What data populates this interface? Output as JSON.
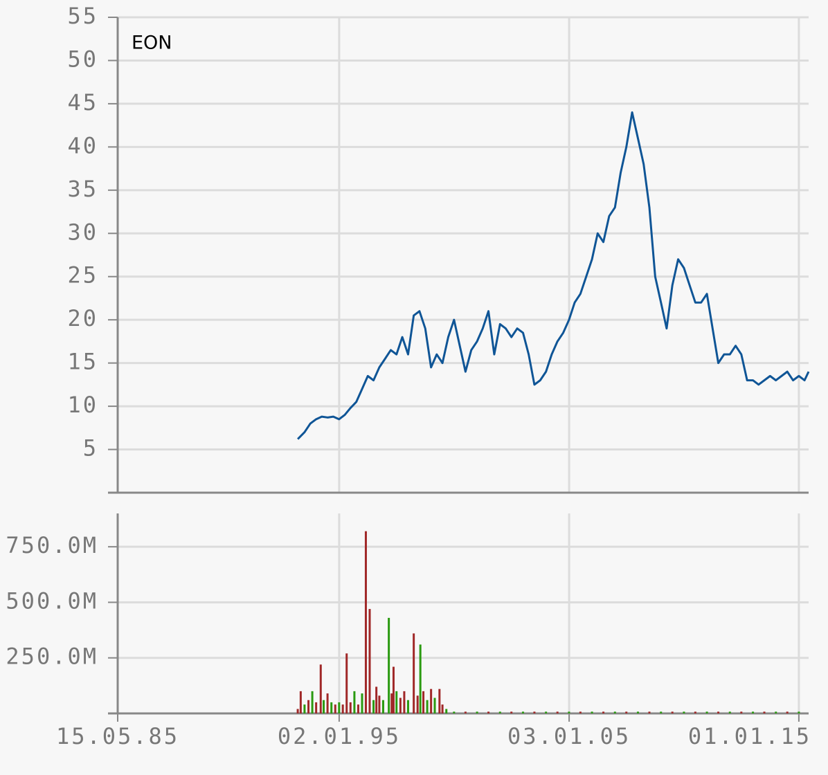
{
  "chart_data": [
    {
      "type": "line",
      "title": "EON",
      "x": [
        "1993-03-15",
        "1993-07-01",
        "1993-10-01",
        "1994-01-01",
        "1994-04-01",
        "1994-07-01",
        "1994-10-01",
        "1995-01-01",
        "1995-04-01",
        "1995-07-01",
        "1995-10-01",
        "1996-01-01",
        "1996-04-01",
        "1996-07-01",
        "1996-10-01",
        "1997-01-01",
        "1997-04-01",
        "1997-07-01",
        "1997-10-01",
        "1998-01-01",
        "1998-04-01",
        "1998-07-01",
        "1998-10-01",
        "1999-01-01",
        "1999-04-01",
        "1999-07-01",
        "1999-10-01",
        "2000-01-01",
        "2000-04-01",
        "2000-07-01",
        "2000-10-01",
        "2001-01-01",
        "2001-04-01",
        "2001-07-01",
        "2001-10-01",
        "2002-01-01",
        "2002-04-01",
        "2002-07-01",
        "2002-10-01",
        "2003-01-01",
        "2003-04-01",
        "2003-07-01",
        "2003-10-01",
        "2004-01-01",
        "2004-04-01",
        "2004-07-01",
        "2004-10-01",
        "2005-01-01",
        "2005-04-01",
        "2005-07-01",
        "2005-10-01",
        "2006-01-01",
        "2006-04-01",
        "2006-07-01",
        "2006-10-01",
        "2007-01-01",
        "2007-04-01",
        "2007-07-01",
        "2007-10-01",
        "2008-01-01",
        "2008-04-01",
        "2008-07-01",
        "2008-10-01",
        "2009-01-01",
        "2009-04-01",
        "2009-07-01",
        "2009-10-01",
        "2010-01-01",
        "2010-04-01",
        "2010-07-01",
        "2010-10-01",
        "2011-01-01",
        "2011-04-01",
        "2011-07-01",
        "2011-10-01",
        "2012-01-01",
        "2012-04-01",
        "2012-07-01",
        "2012-10-01",
        "2013-01-01",
        "2013-04-01",
        "2013-07-01",
        "2013-10-01",
        "2014-01-01",
        "2014-04-01",
        "2014-07-01",
        "2014-10-01",
        "2015-01-01",
        "2015-04-01",
        "2015-06-05"
      ],
      "series": [
        {
          "color": "#0f5596",
          "values": [
            6.2,
            7,
            8,
            8.5,
            8.8,
            8.7,
            8.8,
            8.5,
            9,
            9.8,
            10.5,
            12,
            13.5,
            13,
            14.5,
            15.5,
            16.5,
            16,
            18,
            16,
            20.5,
            21,
            19,
            14.5,
            16,
            15,
            18,
            20,
            17,
            14,
            16.5,
            17.5,
            19,
            21,
            16,
            19.5,
            19,
            18,
            19,
            18.5,
            16,
            12.5,
            13,
            14,
            16,
            17.5,
            18.5,
            20,
            22,
            23,
            25,
            27,
            30,
            29,
            32,
            33,
            37,
            40,
            44,
            41,
            38,
            33,
            25,
            22,
            19,
            24,
            27,
            26,
            24,
            22,
            22,
            23,
            19,
            15,
            16,
            16,
            17,
            16,
            13,
            13,
            12.5,
            13,
            13.5,
            13,
            13.5,
            14,
            13,
            13.5,
            13,
            14
          ]
        }
      ],
      "xlim": [
        "1985-05-15",
        "2015-06-05"
      ],
      "ylim": [
        0,
        55
      ],
      "yticks": [
        5,
        10,
        15,
        20,
        25,
        30,
        35,
        40,
        45,
        50,
        55
      ],
      "grid": true
    },
    {
      "type": "bar",
      "x": [
        "1993-03-15",
        "1993-05-01",
        "1993-07-01",
        "1993-09-01",
        "1993-11-01",
        "1994-01-01",
        "1994-03-15",
        "1994-05-01",
        "1994-07-01",
        "1994-09-01",
        "1994-11-01",
        "1995-01-01",
        "1995-03-01",
        "1995-05-01",
        "1995-07-01",
        "1995-09-01",
        "1995-11-01",
        "1996-01-01",
        "1996-03-01",
        "1996-05-01",
        "1996-07-01",
        "1996-08-15",
        "1996-10-01",
        "1996-12-01",
        "1997-03-01",
        "1997-04-15",
        "1997-05-15",
        "1997-07-01",
        "1997-09-01",
        "1997-11-01",
        "1998-01-01",
        "1998-04-01",
        "1998-06-01",
        "1998-07-15",
        "1998-09-01",
        "1998-11-01",
        "1999-01-01",
        "1999-03-01",
        "1999-05-15",
        "1999-07-01",
        "1999-09-01",
        "2000-01-01",
        "2000-07-01",
        "2001-01-01",
        "2001-07-01",
        "2002-01-01",
        "2002-07-01",
        "2003-01-01",
        "2003-07-01",
        "2004-01-01",
        "2004-07-01",
        "2005-01-01",
        "2005-07-01",
        "2006-01-01",
        "2006-07-01",
        "2007-01-01",
        "2007-07-01",
        "2008-01-01",
        "2008-07-01",
        "2009-01-01",
        "2009-07-01",
        "2010-01-01",
        "2010-07-01",
        "2011-01-01",
        "2011-07-01",
        "2012-01-01",
        "2012-07-01",
        "2013-01-01",
        "2013-07-01",
        "2014-01-01",
        "2014-07-01",
        "2015-01-01"
      ],
      "values": [
        20000000,
        100000000,
        40000000,
        60000000,
        100000000,
        50000000,
        220000000,
        60000000,
        90000000,
        50000000,
        40000000,
        50000000,
        40000000,
        270000000,
        50000000,
        100000000,
        40000000,
        90000000,
        820000000,
        470000000,
        60000000,
        120000000,
        80000000,
        60000000,
        430000000,
        90000000,
        210000000,
        100000000,
        70000000,
        100000000,
        60000000,
        360000000,
        80000000,
        310000000,
        100000000,
        60000000,
        110000000,
        70000000,
        110000000,
        40000000,
        20000000,
        8000000,
        8000000,
        8000000,
        8000000,
        8000000,
        8000000,
        8000000,
        8000000,
        8000000,
        8000000,
        8000000,
        8000000,
        8000000,
        8000000,
        8000000,
        8000000,
        8000000,
        8000000,
        8000000,
        8000000,
        8000000,
        8000000,
        8000000,
        8000000,
        8000000,
        8000000,
        8000000,
        8000000,
        8000000,
        8000000,
        8000000
      ],
      "colors": [
        "#a02828",
        "#a02828",
        "#2a9a10",
        "#a02828",
        "#2a9a10",
        "#a02828",
        "#a02828",
        "#2a9a10",
        "#a02828",
        "#2a9a10",
        "#a02828",
        "#2a9a10",
        "#a02828",
        "#a02828",
        "#a02828",
        "#2a9a10",
        "#a02828",
        "#2a9a10",
        "#a02828",
        "#a02828",
        "#2a9a10",
        "#a02828",
        "#a02828",
        "#2a9a10",
        "#2a9a10",
        "#a02828",
        "#a02828",
        "#2a9a10",
        "#a02828",
        "#a02828",
        "#2a9a10",
        "#a02828",
        "#a02828",
        "#2a9a10",
        "#a02828",
        "#2a9a10",
        "#a02828",
        "#2a9a10",
        "#a02828",
        "#a02828",
        "#2a9a10",
        "#2a9a10",
        "#a02828",
        "#2a9a10",
        "#a02828",
        "#2a9a10",
        "#a02828",
        "#2a9a10",
        "#a02828",
        "#2a9a10",
        "#a02828",
        "#2a9a10",
        "#a02828",
        "#2a9a10",
        "#a02828",
        "#2a9a10",
        "#a02828",
        "#2a9a10",
        "#a02828",
        "#2a9a10",
        "#a02828",
        "#2a9a10",
        "#a02828",
        "#2a9a10",
        "#a02828",
        "#2a9a10",
        "#a02828",
        "#2a9a10",
        "#a02828",
        "#2a9a10",
        "#a02828",
        "#2a9a10"
      ],
      "xlim": [
        "1985-05-15",
        "2015-06-05"
      ],
      "xticks": [
        {
          "value": "1985-05-15",
          "label": "15.05.85"
        },
        {
          "value": "1995-01-02",
          "label": "02.01.95"
        },
        {
          "value": "2005-01-03",
          "label": "03.01.05"
        },
        {
          "value": "2015-01-01",
          "label": "01.01.15"
        }
      ],
      "ylim": [
        0,
        900000000
      ],
      "yticks": [
        {
          "value": 250000000,
          "label": "250.0M"
        },
        {
          "value": 500000000,
          "label": "500.0M"
        },
        {
          "value": 750000000,
          "label": "750.0M"
        }
      ],
      "grid": true
    }
  ]
}
